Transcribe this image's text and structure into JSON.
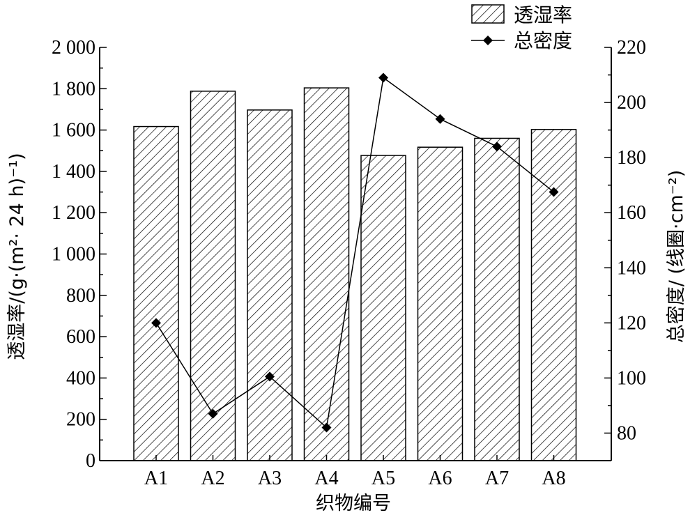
{
  "chart_data": {
    "type": "bar+line",
    "categories": [
      "A1",
      "A2",
      "A3",
      "A4",
      "A5",
      "A6",
      "A7",
      "A8"
    ],
    "series": [
      {
        "name": "透湿率",
        "kind": "bar",
        "axis": "left",
        "pattern": "diagonal-hatch",
        "values": [
          1617,
          1788,
          1697,
          1804,
          1477,
          1517,
          1560,
          1603
        ]
      },
      {
        "name": "总密度",
        "kind": "line",
        "axis": "right",
        "marker": "diamond",
        "values": [
          120,
          87,
          100.5,
          82,
          209,
          194,
          184,
          167.5
        ]
      }
    ],
    "xlabel": "织物编号",
    "ylabel_left": "透湿率/(g·(m²· 24 h)⁻¹)",
    "ylabel_right": "总密度/ (线圈·cm⁻²)",
    "left_axis": {
      "ylim": [
        0,
        2000
      ],
      "ticks": [
        0,
        200,
        400,
        600,
        800,
        1000,
        1200,
        1400,
        1600,
        1800,
        2000
      ],
      "tick_labels": [
        "0",
        "200",
        "400",
        "600",
        "800",
        "1 000",
        "1 200",
        "1 400",
        "1 600",
        "1 800",
        "2 000"
      ]
    },
    "right_axis": {
      "ylim": [
        70,
        220
      ],
      "ticks": [
        80,
        100,
        120,
        140,
        160,
        180,
        200,
        220
      ],
      "tick_labels": [
        "80",
        "100",
        "120",
        "140",
        "160",
        "180",
        "200",
        "220"
      ]
    },
    "grid": false,
    "legend_position": "top-right",
    "colors": {
      "bar_fill": "#ffffff",
      "bar_stroke": "#000000",
      "line": "#000000",
      "marker": "#000000"
    }
  }
}
